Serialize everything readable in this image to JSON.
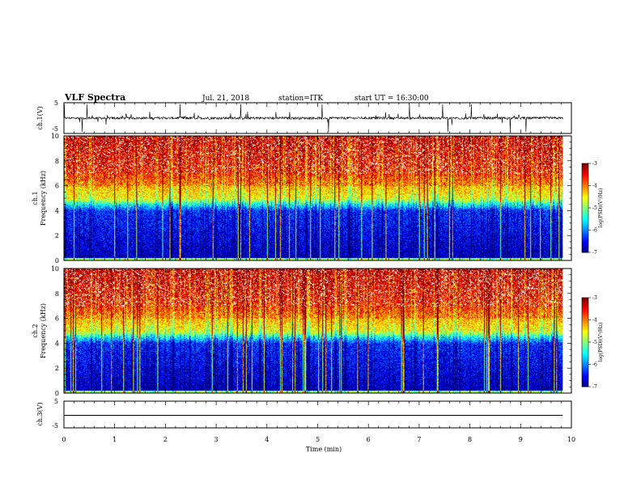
{
  "header": {
    "title": "VLF Spectra",
    "date": "Jul. 21, 2018",
    "station": "station=ITK",
    "start_ut": "start UT = 16:30:00"
  },
  "chart_data": [
    {
      "type": "line",
      "panel": "ch1-waveform",
      "ylabel": "ch.1(V)",
      "ylim": [
        -5,
        5
      ],
      "yticks": [
        "5",
        "-5"
      ],
      "baseline_v": 0.0,
      "noise_v": 0.8,
      "spikes_v": 4.5
    },
    {
      "type": "heatmap",
      "panel": "ch1-spectrogram",
      "ylabel": "ch.1\nFrequency (kHz)",
      "ylim": [
        0,
        10
      ],
      "yticks": [
        "0",
        "2",
        "4",
        "6",
        "8",
        "10"
      ],
      "colorbar": {
        "label": "log(PSD)(V²/Hz)",
        "range": [
          -7,
          -3
        ],
        "ticks": [
          "-3",
          "-4",
          "-5",
          "-6",
          "-7"
        ]
      }
    },
    {
      "type": "heatmap",
      "panel": "ch2-spectrogram",
      "ylabel": "ch.2\nFrequency (kHz)",
      "ylim": [
        0,
        10
      ],
      "yticks": [
        "0",
        "2",
        "4",
        "6",
        "8",
        "10"
      ],
      "colorbar": {
        "label": "log(PSD)(V²/Hz)",
        "range": [
          -7,
          -3
        ],
        "ticks": [
          "-3",
          "-4",
          "-5",
          "-6",
          "-7"
        ]
      }
    },
    {
      "type": "line",
      "panel": "ch3-waveform",
      "ylabel": "ch.3(V)",
      "ylim": [
        -5,
        5
      ],
      "yticks": [
        "5",
        "-5"
      ],
      "baseline_v": -0.3
    }
  ],
  "x_axis": {
    "label": "Time (min)",
    "range": [
      0,
      10
    ],
    "data_end": 9.83,
    "ticks": [
      "0",
      "1",
      "2",
      "3",
      "4",
      "5",
      "6",
      "7",
      "8",
      "9",
      "10"
    ]
  },
  "colors": {
    "frame": "#000000",
    "trace": "#000000"
  }
}
